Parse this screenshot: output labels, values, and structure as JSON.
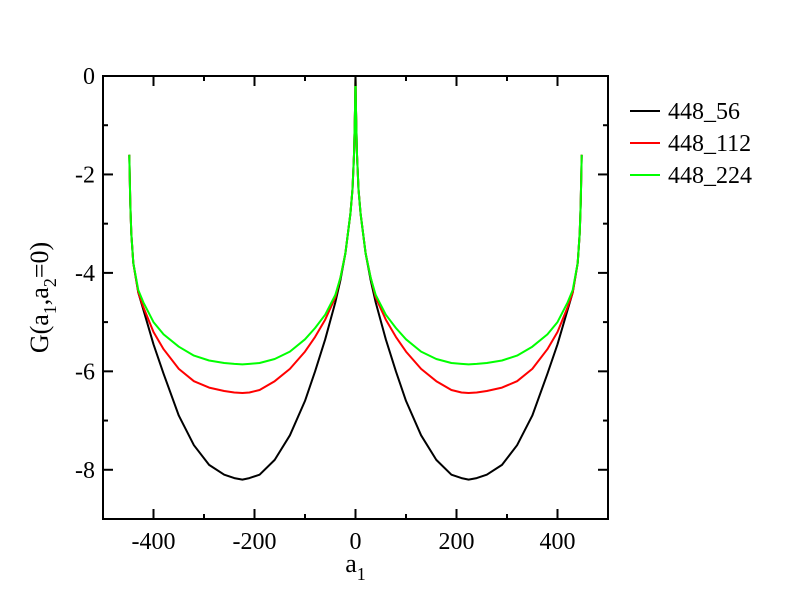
{
  "chart_data": {
    "type": "line",
    "xlabel": {
      "base": "a",
      "sub": "1"
    },
    "ylabel": {
      "parts": [
        {
          "text": "G(a",
          "sub": false
        },
        {
          "text": "1",
          "sub": true
        },
        {
          "text": ",a",
          "sub": false
        },
        {
          "text": "2",
          "sub": true
        },
        {
          "text": "=0)",
          "sub": false
        }
      ]
    },
    "xlim": [
      -500,
      500
    ],
    "ylim": [
      -9,
      0
    ],
    "x_ticks": [
      -400,
      -200,
      0,
      200,
      400
    ],
    "x_tick_labels": [
      "-400",
      "-200",
      "0",
      "200",
      "400"
    ],
    "y_ticks": [
      0,
      -2,
      -4,
      -6,
      -8
    ],
    "y_tick_labels": [
      "0",
      "-2",
      "-4",
      "-6",
      "-8"
    ],
    "grid": false,
    "legend_position": "outside-right",
    "series": [
      {
        "name": "448_56",
        "color": "#000000",
        "x": [
          -448,
          -446,
          -444,
          -440,
          -430,
          -420,
          -400,
          -380,
          -350,
          -320,
          -290,
          -260,
          -240,
          -224,
          -210,
          -190,
          -160,
          -130,
          -100,
          -80,
          -60,
          -40,
          -30,
          -20,
          -10,
          -6,
          -3,
          -1,
          0,
          1,
          3,
          6,
          10,
          20,
          30,
          40,
          60,
          80,
          100,
          130,
          160,
          190,
          210,
          224,
          240,
          260,
          290,
          320,
          350,
          380,
          400,
          420,
          430,
          440,
          444,
          446,
          448
        ],
        "y": [
          -1.6,
          -2.6,
          -3.2,
          -3.8,
          -4.4,
          -4.75,
          -5.45,
          -6.05,
          -6.9,
          -7.5,
          -7.9,
          -8.1,
          -8.17,
          -8.2,
          -8.17,
          -8.1,
          -7.8,
          -7.3,
          -6.6,
          -6.0,
          -5.35,
          -4.6,
          -4.15,
          -3.6,
          -2.8,
          -2.3,
          -1.6,
          -0.7,
          0,
          -0.7,
          -1.6,
          -2.3,
          -2.8,
          -3.6,
          -4.15,
          -4.6,
          -5.35,
          -6.0,
          -6.6,
          -7.3,
          -7.8,
          -8.1,
          -8.17,
          -8.2,
          -8.17,
          -8.1,
          -7.9,
          -7.5,
          -6.9,
          -6.05,
          -5.45,
          -4.75,
          -4.4,
          -3.8,
          -3.2,
          -2.6,
          -1.6
        ]
      },
      {
        "name": "448_112",
        "color": "#ff0000",
        "x": [
          -448,
          -446,
          -444,
          -440,
          -430,
          -420,
          -400,
          -380,
          -350,
          -320,
          -290,
          -260,
          -240,
          -224,
          -210,
          -190,
          -160,
          -130,
          -100,
          -80,
          -60,
          -40,
          -30,
          -20,
          -10,
          -6,
          -3,
          -1,
          0,
          1,
          3,
          6,
          10,
          20,
          30,
          40,
          60,
          80,
          100,
          130,
          160,
          190,
          210,
          224,
          240,
          260,
          290,
          320,
          350,
          380,
          400,
          420,
          430,
          440,
          444,
          446,
          448
        ],
        "y": [
          -1.6,
          -2.6,
          -3.2,
          -3.8,
          -4.4,
          -4.7,
          -5.2,
          -5.55,
          -5.95,
          -6.2,
          -6.33,
          -6.4,
          -6.43,
          -6.44,
          -6.43,
          -6.38,
          -6.2,
          -5.95,
          -5.6,
          -5.3,
          -4.95,
          -4.5,
          -4.1,
          -3.6,
          -2.8,
          -2.3,
          -1.6,
          -0.7,
          0,
          -0.7,
          -1.6,
          -2.3,
          -2.8,
          -3.6,
          -4.1,
          -4.5,
          -4.95,
          -5.3,
          -5.6,
          -5.95,
          -6.2,
          -6.38,
          -6.43,
          -6.44,
          -6.43,
          -6.4,
          -6.33,
          -6.2,
          -5.95,
          -5.55,
          -5.2,
          -4.7,
          -4.4,
          -3.8,
          -3.2,
          -2.6,
          -1.6
        ]
      },
      {
        "name": "448_224",
        "color": "#00ff00",
        "x": [
          -448,
          -446,
          -444,
          -440,
          -430,
          -420,
          -400,
          -380,
          -350,
          -320,
          -290,
          -260,
          -240,
          -224,
          -210,
          -190,
          -160,
          -130,
          -100,
          -80,
          -60,
          -40,
          -30,
          -20,
          -10,
          -6,
          -3,
          -1,
          0,
          1,
          3,
          6,
          10,
          20,
          30,
          40,
          60,
          80,
          100,
          130,
          160,
          190,
          210,
          224,
          240,
          260,
          290,
          320,
          350,
          380,
          400,
          420,
          430,
          440,
          444,
          446,
          448
        ],
        "y": [
          -1.6,
          -2.6,
          -3.2,
          -3.8,
          -4.35,
          -4.6,
          -5.0,
          -5.25,
          -5.5,
          -5.68,
          -5.78,
          -5.83,
          -5.85,
          -5.86,
          -5.85,
          -5.83,
          -5.75,
          -5.6,
          -5.35,
          -5.12,
          -4.85,
          -4.45,
          -4.1,
          -3.6,
          -2.8,
          -2.3,
          -1.6,
          -0.7,
          0,
          -0.7,
          -1.6,
          -2.3,
          -2.8,
          -3.6,
          -4.1,
          -4.45,
          -4.85,
          -5.12,
          -5.35,
          -5.6,
          -5.75,
          -5.83,
          -5.85,
          -5.86,
          -5.85,
          -5.83,
          -5.78,
          -5.68,
          -5.5,
          -5.25,
          -5.0,
          -4.6,
          -4.35,
          -3.8,
          -3.2,
          -2.6,
          -1.6
        ]
      }
    ]
  }
}
